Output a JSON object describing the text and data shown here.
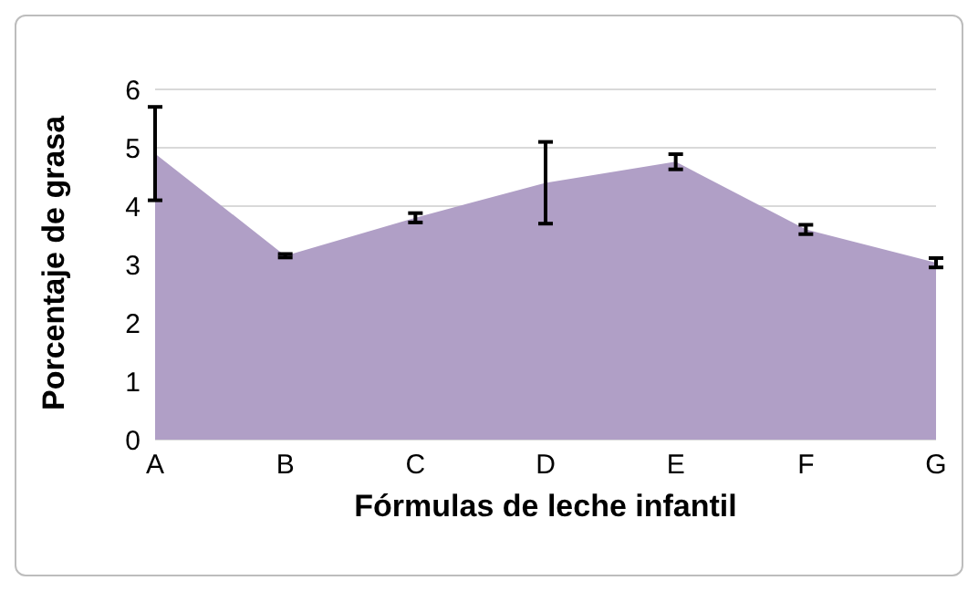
{
  "chart_data": {
    "type": "area",
    "xlabel": "Fórmulas de leche infantil",
    "ylabel": "Porcentaje de grasa",
    "categories": [
      "A",
      "B",
      "C",
      "D",
      "E",
      "F",
      "G"
    ],
    "values": [
      4.9,
      3.15,
      3.8,
      4.4,
      4.76,
      3.6,
      3.03
    ],
    "errors": [
      0.8,
      0.03,
      0.08,
      0.7,
      0.13,
      0.08,
      0.08
    ],
    "color": "#b09fc6",
    "ylim": [
      0,
      6
    ],
    "yticks": [
      0,
      1,
      2,
      3,
      4,
      5,
      6
    ],
    "grid": "y"
  }
}
